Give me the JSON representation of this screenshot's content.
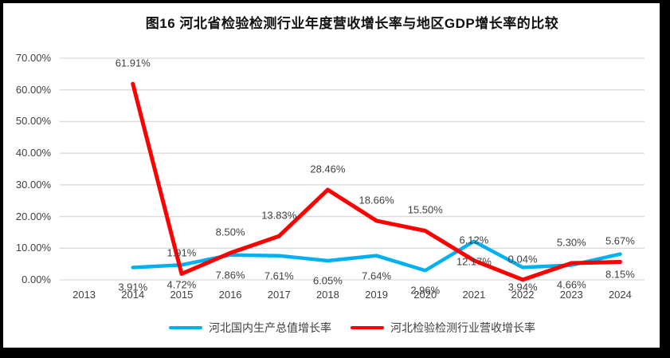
{
  "title": "图16 河北省检验检测行业年度营收增长率与地区GDP增长率的比较",
  "colors": {
    "frame_border": "#000000",
    "background": "#FFFFFF",
    "grid": "#D9D9D9",
    "axis_text": "#404040",
    "data_label_text": "#404040",
    "gdp_series": "#00B0F0",
    "industry_series": "#FF0000"
  },
  "chart_data": {
    "type": "line",
    "categories": [
      "2013",
      "2014",
      "2015",
      "2016",
      "2017",
      "2018",
      "2019",
      "2020",
      "2021",
      "2022",
      "2023",
      "2024"
    ],
    "series": [
      {
        "name": "河北国内生产总值增长率",
        "color": "#00B0F0",
        "values": [
          null,
          3.91,
          4.72,
          7.86,
          7.61,
          6.05,
          7.64,
          2.96,
          12.17,
          3.94,
          4.66,
          8.15
        ],
        "labels": [
          null,
          "3.91%",
          "4.72%",
          "7.86%",
          "7.61%",
          "6.05%",
          "7.64%",
          "2.96%",
          "12.17%",
          "3.94%",
          "4.66%",
          "8.15%"
        ],
        "label_position": "below"
      },
      {
        "name": "河北检验检测行业营收增长率",
        "color": "#FF0000",
        "values": [
          null,
          61.91,
          1.91,
          8.5,
          13.83,
          28.46,
          18.66,
          15.5,
          6.12,
          0.04,
          5.3,
          5.67
        ],
        "labels": [
          null,
          "61.91%",
          "1.91%",
          "8.50%",
          "13.83%",
          "28.46%",
          "18.66%",
          "15.50%",
          "6.12%",
          "0.04%",
          "5.30%",
          "5.67%"
        ],
        "label_position": "above"
      }
    ],
    "y_axis": {
      "tick_labels": [
        "0.00%",
        "10.00%",
        "20.00%",
        "30.00%",
        "40.00%",
        "50.00%",
        "60.00%",
        "70.00%"
      ],
      "min": 0,
      "max": 70,
      "step": 10
    },
    "x_axis": {
      "tick_labels": [
        "2013",
        "2014",
        "2015",
        "2016",
        "2017",
        "2018",
        "2019",
        "2020",
        "2021",
        "2022",
        "2023",
        "2024"
      ]
    },
    "grid": true,
    "legend_position": "bottom"
  }
}
